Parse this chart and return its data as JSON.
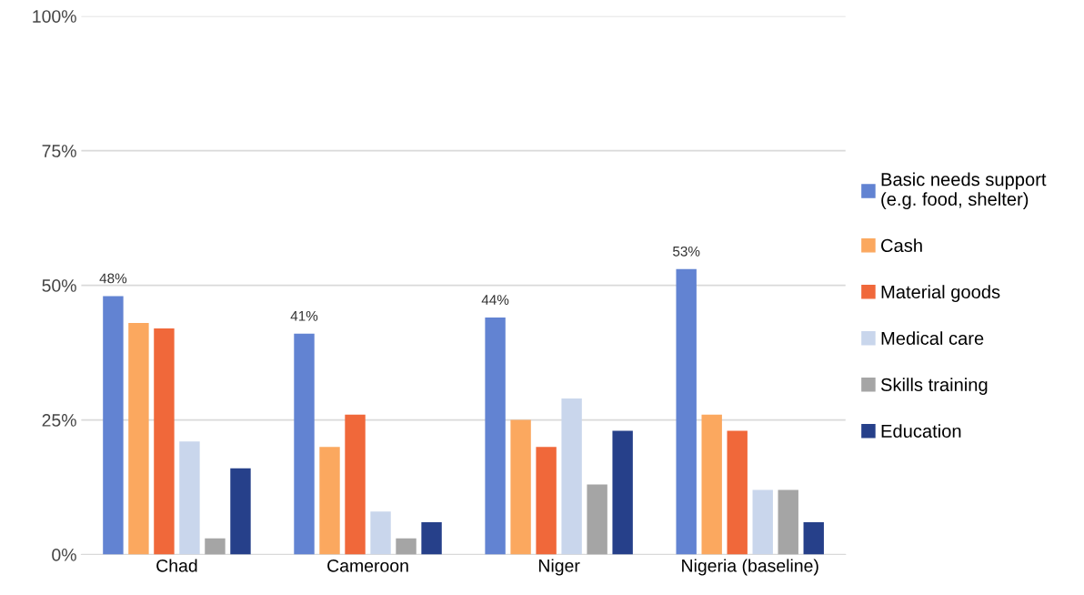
{
  "chart_data": {
    "type": "bar",
    "categories": [
      "Chad",
      "Cameroon",
      "Niger",
      "Nigeria (baseline)"
    ],
    "series": [
      {
        "name": "Basic needs support\n(e.g. food, shelter)",
        "color": "#6283d2",
        "values": [
          48,
          41,
          44,
          53
        ],
        "value_labels": [
          "48%",
          "41%",
          "44%",
          "53%"
        ]
      },
      {
        "name": "Cash",
        "color": "#fba85f",
        "values": [
          43,
          20,
          25,
          26
        ]
      },
      {
        "name": "Material goods",
        "color": "#f0683a",
        "values": [
          42,
          26,
          20,
          23
        ]
      },
      {
        "name": "Medical care",
        "color": "#c9d6ec",
        "values": [
          21,
          8,
          29,
          12
        ]
      },
      {
        "name": "Skills training",
        "color": "#a5a5a5",
        "values": [
          3,
          3,
          13,
          12
        ]
      },
      {
        "name": "Education",
        "color": "#26408a",
        "values": [
          16,
          6,
          23,
          6
        ]
      }
    ],
    "ylim": [
      0,
      100
    ],
    "yticks": [
      {
        "value": 0,
        "label": "0%"
      },
      {
        "value": 25,
        "label": "25%"
      },
      {
        "value": 50,
        "label": "50%"
      },
      {
        "value": 75,
        "label": "75%"
      },
      {
        "value": 100,
        "label": "100%"
      }
    ],
    "grid": "y",
    "legend": "right"
  }
}
